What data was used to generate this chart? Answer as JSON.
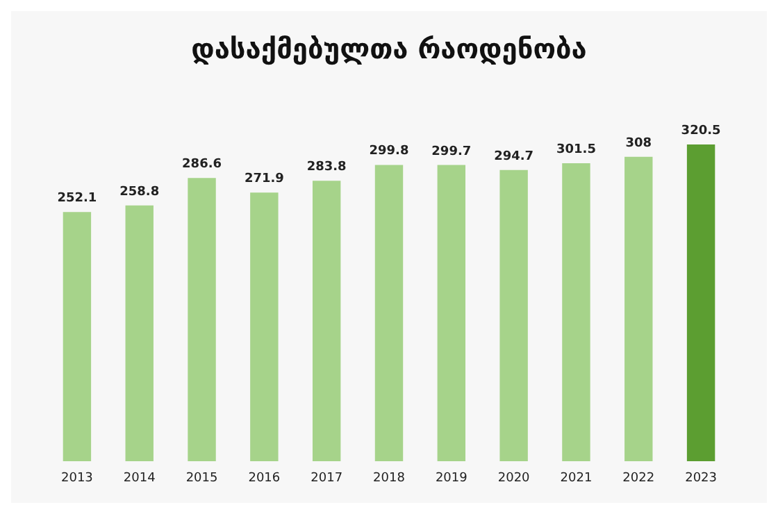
{
  "chart_data": {
    "type": "bar",
    "title": "დასაქმებულთა რაოდენობა",
    "categories": [
      "2013",
      "2014",
      "2015",
      "2016",
      "2017",
      "2018",
      "2019",
      "2020",
      "2021",
      "2022",
      "2023"
    ],
    "values": [
      252.1,
      258.8,
      286.6,
      271.9,
      283.8,
      299.8,
      299.7,
      294.7,
      301.5,
      308,
      320.5
    ],
    "colors": [
      "#a6d38a",
      "#a6d38a",
      "#a6d38a",
      "#a6d38a",
      "#a6d38a",
      "#a6d38a",
      "#a6d38a",
      "#a6d38a",
      "#a6d38a",
      "#a6d38a",
      "#5c9e31"
    ],
    "data_labels": true
  }
}
